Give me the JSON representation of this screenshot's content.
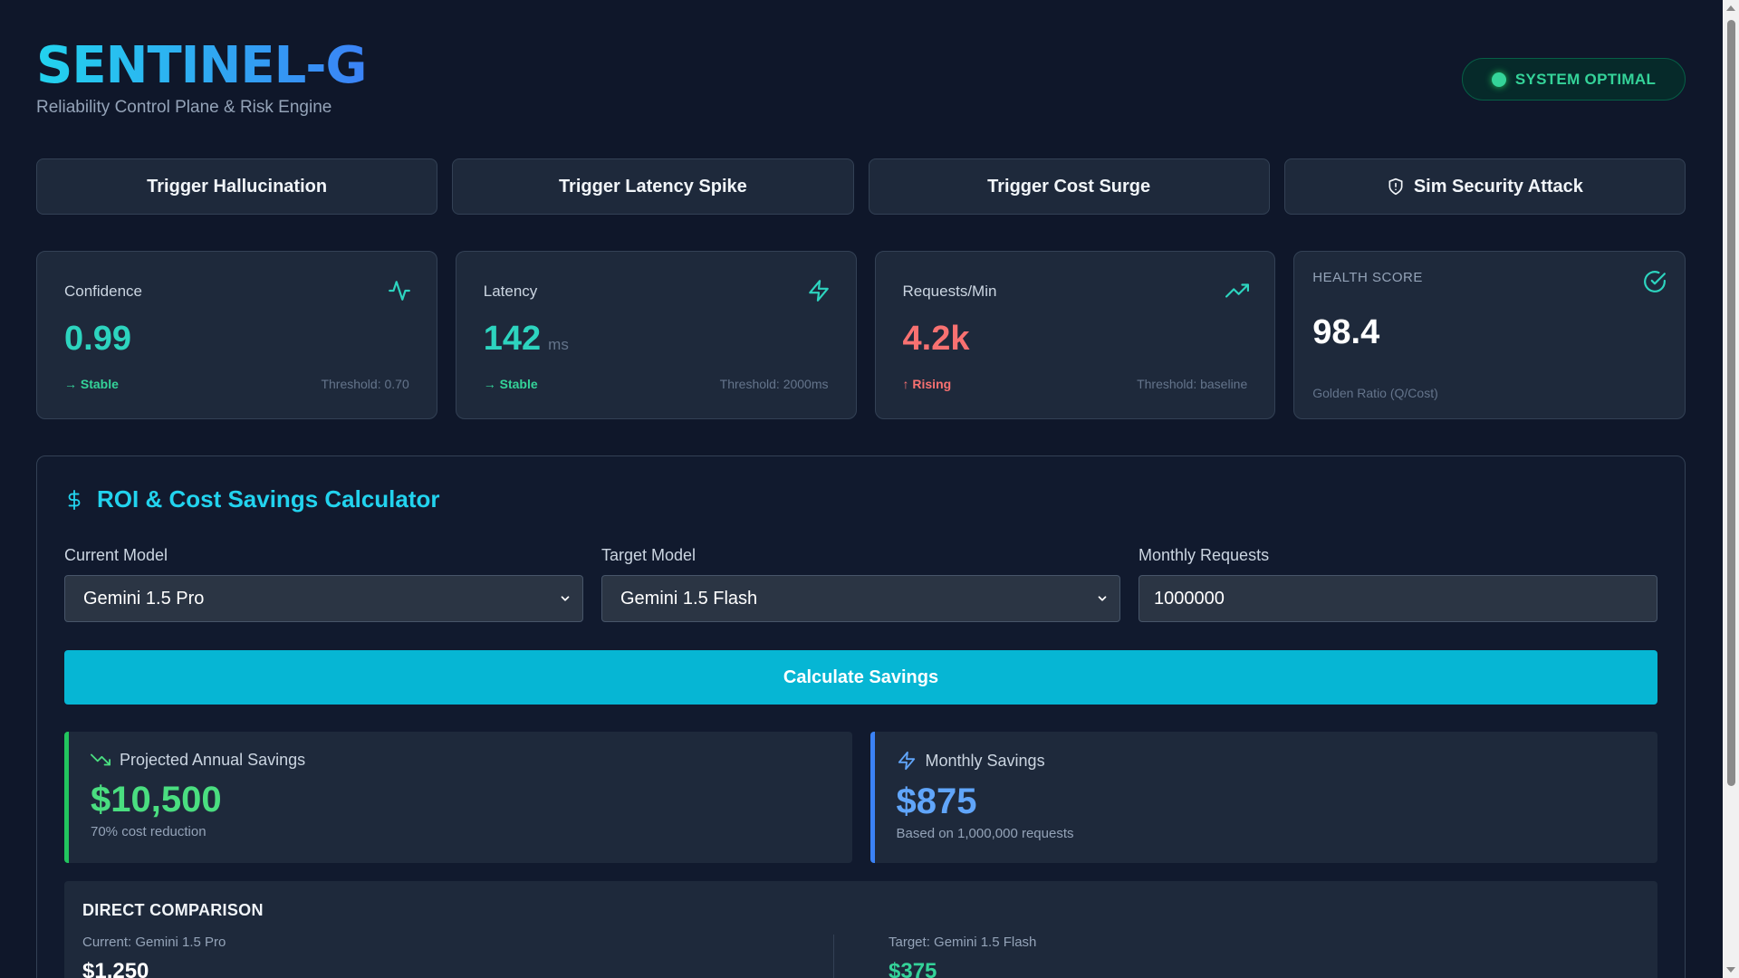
{
  "header": {
    "title": "SENTINEL-G",
    "subtitle": "Reliability Control Plane & Risk Engine",
    "status": "SYSTEM OPTIMAL"
  },
  "triggers": [
    {
      "label": "Trigger Hallucination",
      "icon": ""
    },
    {
      "label": "Trigger Latency Spike",
      "icon": ""
    },
    {
      "label": "Trigger Cost Surge",
      "icon": ""
    },
    {
      "label": "Sim Security Attack",
      "icon": "shield-icon"
    }
  ],
  "metrics": {
    "confidence": {
      "label": "Confidence",
      "value": "0.99",
      "trend": "→ Stable",
      "threshold": "Threshold: 0.70",
      "icon": "activity-icon"
    },
    "latency": {
      "label": "Latency",
      "value": "142",
      "unit": "ms",
      "trend": "→ Stable",
      "threshold": "Threshold: 2000ms",
      "icon": "zap-icon"
    },
    "requests": {
      "label": "Requests/Min",
      "value": "4.2k",
      "trend": "↑ Rising",
      "threshold": "Threshold: baseline",
      "icon": "trending-up-icon"
    },
    "health": {
      "label": "HEALTH SCORE",
      "value": "98.4",
      "footnote": "Golden Ratio (Q/Cost)",
      "icon": "check-circle-icon"
    }
  },
  "roi": {
    "title": "ROI & Cost Savings Calculator",
    "current_model_label": "Current Model",
    "current_model_value": "Gemini 1.5 Pro",
    "target_model_label": "Target Model",
    "target_model_value": "Gemini 1.5 Flash",
    "monthly_requests_label": "Monthly Requests",
    "monthly_requests_value": "1000000",
    "calculate_label": "Calculate Savings",
    "annual": {
      "label": "Projected Annual Savings",
      "value": "$10,500",
      "sub": "70% cost reduction"
    },
    "monthly": {
      "label": "Monthly Savings",
      "value": "$875",
      "sub": "Based on 1,000,000 requests"
    },
    "comparison": {
      "title": "DIRECT COMPARISON",
      "current_label": "Current: Gemini 1.5 Pro",
      "current_value": "$1,250",
      "target_label": "Target: Gemini 1.5 Flash",
      "target_value": "$375"
    }
  },
  "colors": {
    "accent": "#22d3ee",
    "success": "#34d399",
    "danger": "#f87171",
    "button": "#06b6d4"
  }
}
